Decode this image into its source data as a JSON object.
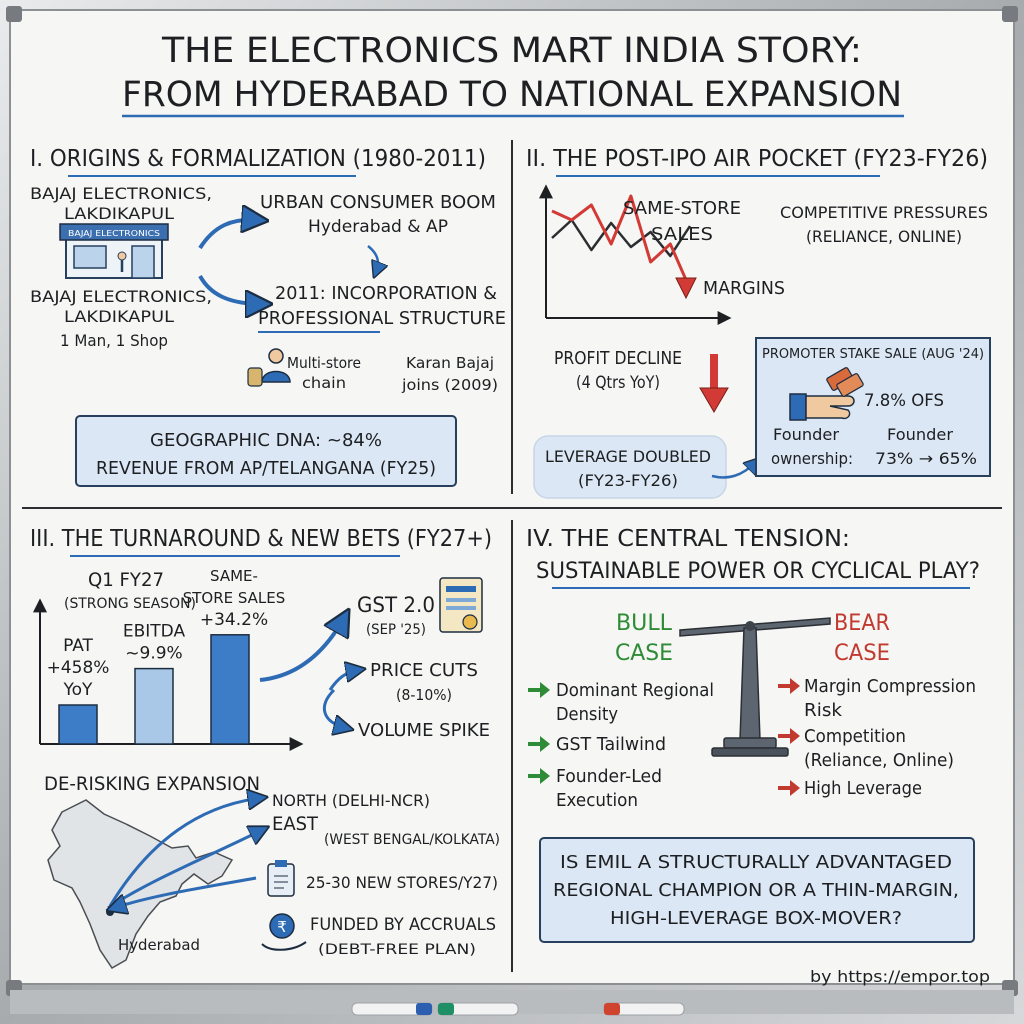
{
  "title": {
    "line1": "THE ELECTRONICS MART INDIA STORY:",
    "line2": "FROM HYDERABAD TO NATIONAL EXPANSION"
  },
  "colors": {
    "accent_blue": "#2e6bb5",
    "box_fill": "#dbe7f4",
    "bar_blue": "#3d7dc8",
    "bar_light": "#a9c8e8",
    "arrow_red": "#d23b35",
    "bull_green": "#2e8b36",
    "bear_red": "#c23a2f"
  },
  "s1": {
    "heading": "I. ORIGINS & FORMALIZATION (1980-2011)",
    "shop_name": [
      "BAJAJ ELECTRONICS,",
      "LAKDIKAPUL"
    ],
    "shop_sign": "BAJAJ ELECTRONICS",
    "shop_desc": [
      "BAJAJ ELECTRONICS,",
      "LAKDIKAPUL",
      "1 Man, 1 Shop"
    ],
    "boom": [
      "URBAN CONSUMER BOOM",
      "Hyderabad & AP"
    ],
    "incorp": [
      "2011: INCORPORATION &",
      "PROFESSIONAL STRUCTURE"
    ],
    "multistore": [
      "Multi-store",
      "chain"
    ],
    "karan": [
      "Karan Bajaj",
      "joins (2009)"
    ],
    "dna": [
      "GEOGRAPHIC DNA: ~84%",
      "REVENUE FROM AP/TELANGANA (FY25)"
    ]
  },
  "s2": {
    "heading": "II. THE POST-IPO AIR POCKET (FY23-FY26)",
    "chart_sales": [
      "SAME-STORE",
      "SALES"
    ],
    "chart_margins": "MARGINS",
    "competitive": [
      "COMPETITIVE PRESSURES",
      "(RELIANCE, ONLINE)"
    ],
    "profit": [
      "PROFIT DECLINE",
      "(4 Qtrs YoY)"
    ],
    "leverage": [
      "LEVERAGE DOUBLED",
      "(FY23-FY26)"
    ],
    "promoter_title": "PROMOTER STAKE SALE (AUG '24)",
    "ofs": "7.8% OFS",
    "founder_a": [
      "Founder",
      "ownership:"
    ],
    "founder_b": [
      "Founder",
      "73% → 65%"
    ]
  },
  "s3": {
    "heading": "III. THE TURNAROUND & NEW BETS (FY27+)",
    "quarter": [
      "Q1 FY27",
      "(STRONG SEASON)"
    ],
    "gst": [
      "GST 2.0",
      "(SEP '25)"
    ],
    "price_cuts": [
      "PRICE CUTS",
      "(8-10%)"
    ],
    "volume": "VOLUME SPIKE",
    "derisk": "DE-RISKING EXPANSION",
    "north": "NORTH (DELHI-NCR)",
    "east": [
      "EAST",
      "(WEST BENGAL/KOLKATA)"
    ],
    "stores": "25-30 NEW STORES/Y27)",
    "funded": [
      "FUNDED BY ACCRUALS",
      "(DEBT-FREE PLAN)"
    ],
    "hyderabad": "Hyderabad",
    "rupee": "₹"
  },
  "chart_data": {
    "type": "bar",
    "categories": [
      "PAT",
      "EBITDA",
      "SAME-STORE SALES"
    ],
    "bar_labels": [
      [
        "PAT",
        "+458%",
        "YoY"
      ],
      [
        "EBITDA",
        "~9.9%"
      ],
      [
        "SAME-",
        "STORE SALES",
        "+34.2%"
      ]
    ],
    "values": [
      458,
      9.9,
      34.2
    ],
    "units": [
      "% YoY",
      "%",
      "%"
    ],
    "relative_heights": [
      0.3,
      0.58,
      0.84
    ]
  },
  "s2_chart_data": {
    "type": "line",
    "series": [
      {
        "name": "SAME-STORE SALES",
        "values": [
          1.0,
          1.3,
          0.8,
          1.25,
          0.85,
          1.1,
          0.7,
          1.2
        ]
      },
      {
        "name": "MARGINS",
        "values": [
          1.45,
          1.3,
          1.55,
          0.9,
          1.7,
          0.6,
          0.9,
          0.15
        ]
      }
    ],
    "grid": false
  },
  "s4": {
    "heading": [
      "IV. THE CENTRAL TENSION:",
      "SUSTAINABLE POWER OR CYCLICAL PLAY?"
    ],
    "bull": [
      "BULL",
      "CASE"
    ],
    "bear": [
      "BEAR",
      "CASE"
    ],
    "bull_items": [
      [
        "Dominant Regional",
        "Density"
      ],
      [
        "GST Tailwind"
      ],
      [
        "Founder-Led",
        "Execution"
      ]
    ],
    "bear_items": [
      [
        "Margin Compression",
        "Risk"
      ],
      [
        "Competition",
        "(Reliance, Online)"
      ],
      [
        "High Leverage"
      ]
    ],
    "question": [
      "IS EMIL A STRUCTURALLY ADVANTAGED",
      "REGIONAL CHAMPION OR A THIN-MARGIN,",
      "HIGH-LEVERAGE BOX-MOVER?"
    ]
  },
  "credit": "by https://empor.top"
}
